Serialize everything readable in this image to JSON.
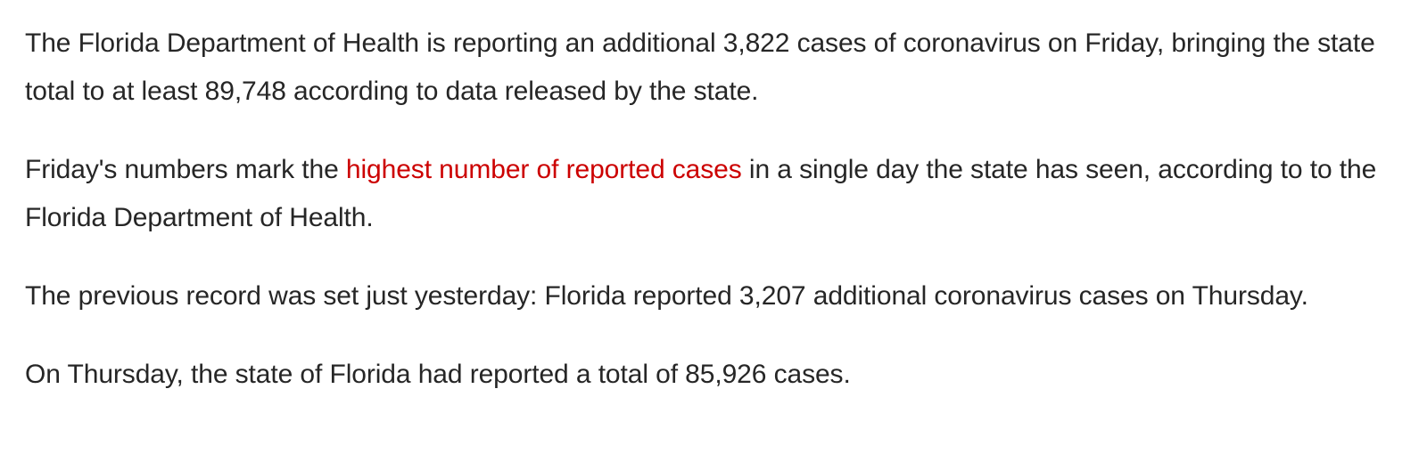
{
  "article": {
    "paragraphs": [
      {
        "text": "The Florida Department of Health is reporting an additional 3,822 cases of coronavirus on Friday, bringing the state total to at least 89,748 according to data released by the state."
      },
      {
        "before": "Friday's numbers mark the ",
        "link": "highest number of reported cases",
        "after": " in a single day the state has seen, according to to the Florida Department of Health."
      },
      {
        "text": "The previous record was set just yesterday: Florida reported 3,207 additional coronavirus cases on Thursday."
      },
      {
        "text": "On Thursday, the state of Florida had reported a total of 85,926 cases."
      }
    ]
  },
  "colors": {
    "body_text": "#262626",
    "link": "#cc0000",
    "background": "#ffffff"
  }
}
